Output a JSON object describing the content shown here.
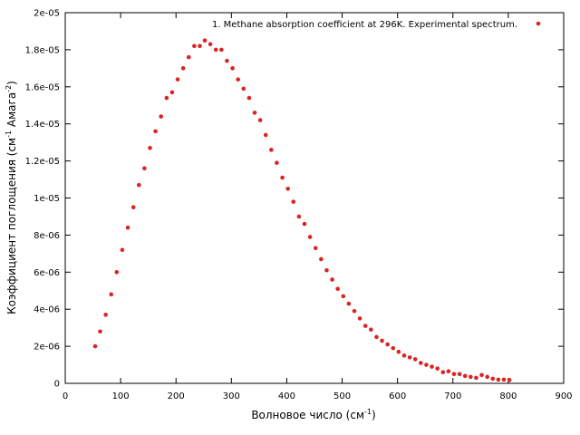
{
  "chart_data": {
    "type": "scatter",
    "title": "",
    "xlabel": {
      "main": "Волновое число (см",
      "sup": "-1",
      "close": ")"
    },
    "ylabel": {
      "main": "Коэффициент поглощения (см",
      "sup1": "-1",
      "mid": " Амага",
      "sup2": "-2",
      "close": ")"
    },
    "xlim": [
      0,
      900
    ],
    "ylim": [
      0,
      2e-05
    ],
    "xticks": [
      0,
      100,
      200,
      300,
      400,
      500,
      600,
      700,
      800,
      900
    ],
    "xtick_labels": [
      "0",
      "100",
      "200",
      "300",
      "400",
      "500",
      "600",
      "700",
      "800",
      "900"
    ],
    "yticks": [
      0,
      2e-06,
      4e-06,
      6e-06,
      8e-06,
      1e-05,
      1.2e-05,
      1.4e-05,
      1.6e-05,
      1.8e-05,
      2e-05
    ],
    "ytick_labels": [
      "0",
      "2e-06",
      "4e-06",
      "6e-06",
      "8e-06",
      "1e-05",
      "1.2e-05",
      "1.4e-05",
      "1.6e-05",
      "1.8e-05",
      "2e-05"
    ],
    "grid": false,
    "legend_position": "top-right",
    "series": [
      {
        "name": "1. Methane  absorption coefficient at 296K. Experimental spectrum.",
        "color": "#dd2222",
        "points": [
          [
            54,
            2e-06
          ],
          [
            63,
            2.8e-06
          ],
          [
            73,
            3.7e-06
          ],
          [
            83,
            4.8e-06
          ],
          [
            93,
            6e-06
          ],
          [
            103,
            7.2e-06
          ],
          [
            113,
            8.4e-06
          ],
          [
            123,
            9.5e-06
          ],
          [
            133,
            1.07e-05
          ],
          [
            143,
            1.16e-05
          ],
          [
            153,
            1.27e-05
          ],
          [
            163,
            1.36e-05
          ],
          [
            173,
            1.44e-05
          ],
          [
            183,
            1.54e-05
          ],
          [
            193,
            1.57e-05
          ],
          [
            203,
            1.64e-05
          ],
          [
            213,
            1.7e-05
          ],
          [
            223,
            1.76e-05
          ],
          [
            233,
            1.82e-05
          ],
          [
            243,
            1.82e-05
          ],
          [
            252,
            1.85e-05
          ],
          [
            262,
            1.83e-05
          ],
          [
            272,
            1.8e-05
          ],
          [
            282,
            1.8e-05
          ],
          [
            292,
            1.74e-05
          ],
          [
            302,
            1.7e-05
          ],
          [
            312,
            1.64e-05
          ],
          [
            322,
            1.59e-05
          ],
          [
            332,
            1.54e-05
          ],
          [
            342,
            1.46e-05
          ],
          [
            352,
            1.42e-05
          ],
          [
            362,
            1.34e-05
          ],
          [
            372,
            1.26e-05
          ],
          [
            382,
            1.19e-05
          ],
          [
            392,
            1.11e-05
          ],
          [
            402,
            1.05e-05
          ],
          [
            412,
            9.8e-06
          ],
          [
            422,
            9e-06
          ],
          [
            432,
            8.6e-06
          ],
          [
            442,
            7.9e-06
          ],
          [
            452,
            7.3e-06
          ],
          [
            462,
            6.7e-06
          ],
          [
            472,
            6.1e-06
          ],
          [
            482,
            5.6e-06
          ],
          [
            492,
            5.1e-06
          ],
          [
            502,
            4.7e-06
          ],
          [
            512,
            4.3e-06
          ],
          [
            522,
            3.9e-06
          ],
          [
            532,
            3.5e-06
          ],
          [
            542,
            3.1e-06
          ],
          [
            552,
            2.9e-06
          ],
          [
            562,
            2.5e-06
          ],
          [
            572,
            2.3e-06
          ],
          [
            582,
            2.1e-06
          ],
          [
            592,
            1.9e-06
          ],
          [
            602,
            1.7e-06
          ],
          [
            612,
            1.5e-06
          ],
          [
            622,
            1.4e-06
          ],
          [
            632,
            1.3e-06
          ],
          [
            642,
            1.1e-06
          ],
          [
            652,
            1e-06
          ],
          [
            662,
            9e-07
          ],
          [
            672,
            8e-07
          ],
          [
            682,
            6e-07
          ],
          [
            692,
            6.5e-07
          ],
          [
            702,
            5e-07
          ],
          [
            712,
            5e-07
          ],
          [
            722,
            4e-07
          ],
          [
            732,
            3.5e-07
          ],
          [
            742,
            3e-07
          ],
          [
            752,
            4.5e-07
          ],
          [
            762,
            3.5e-07
          ],
          [
            772,
            2.5e-07
          ],
          [
            782,
            2e-07
          ],
          [
            792,
            2e-07
          ],
          [
            802,
            1.8e-07
          ]
        ]
      }
    ]
  }
}
